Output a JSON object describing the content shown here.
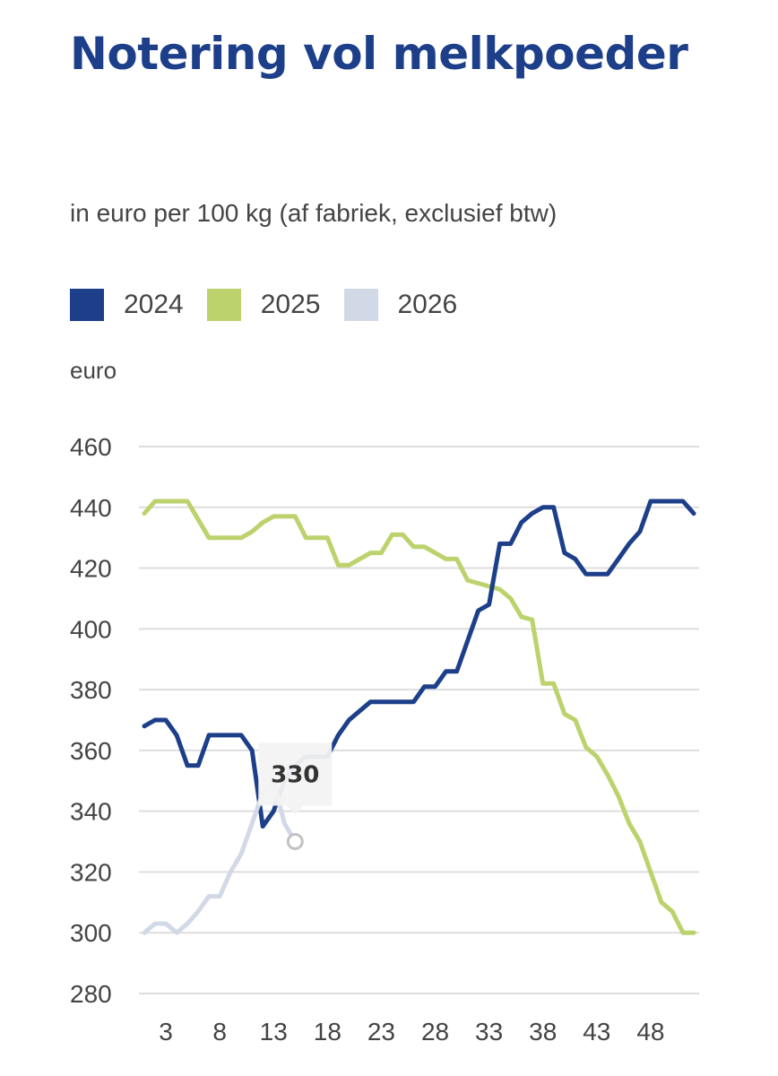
{
  "chart_data": {
    "type": "line",
    "title": "Notering vol melkpoeder",
    "subtitle": "in euro per 100 kg (af fabriek, exclusief btw)",
    "ylabel": "euro",
    "xlabel": "",
    "ylim": [
      280,
      460
    ],
    "yticks": [
      460,
      440,
      420,
      400,
      380,
      360,
      340,
      320,
      300,
      280
    ],
    "xticks": [
      3,
      8,
      13,
      18,
      23,
      28,
      33,
      38,
      43,
      48
    ],
    "xlim": [
      0.5,
      52.5
    ],
    "legend_position": "top",
    "series": [
      {
        "name": "2024",
        "color": "#1d3f8a",
        "x": [
          1,
          2,
          3,
          4,
          5,
          6,
          7,
          8,
          9,
          10,
          11,
          12,
          13,
          14,
          15,
          16,
          17,
          18,
          19,
          20,
          21,
          22,
          23,
          24,
          25,
          26,
          27,
          28,
          29,
          30,
          31,
          32,
          33,
          34,
          35,
          36,
          37,
          38,
          39,
          40,
          41,
          42,
          43,
          44,
          45,
          46,
          47,
          48,
          49,
          50,
          51,
          52
        ],
        "values": [
          368,
          370,
          370,
          365,
          355,
          355,
          365,
          365,
          365,
          365,
          360,
          335,
          340,
          350,
          355,
          358,
          358,
          358,
          365,
          370,
          373,
          376,
          376,
          376,
          376,
          376,
          381,
          381,
          386,
          386,
          396,
          406,
          408,
          428,
          428,
          435,
          438,
          440,
          440,
          425,
          423,
          418,
          418,
          418,
          423,
          428,
          432,
          442,
          442,
          442,
          442,
          438
        ]
      },
      {
        "name": "2025",
        "color": "#bcd26c",
        "x": [
          1,
          2,
          3,
          4,
          5,
          6,
          7,
          8,
          9,
          10,
          11,
          12,
          13,
          14,
          15,
          16,
          17,
          18,
          19,
          20,
          21,
          22,
          23,
          24,
          25,
          26,
          27,
          28,
          29,
          30,
          31,
          32,
          33,
          34,
          35,
          36,
          37,
          38,
          39,
          40,
          41,
          42,
          43,
          44,
          45,
          46,
          47,
          48,
          49,
          50,
          51,
          52
        ],
        "values": [
          438,
          442,
          442,
          442,
          442,
          436,
          430,
          430,
          430,
          430,
          432,
          435,
          437,
          437,
          437,
          430,
          430,
          430,
          421,
          421,
          423,
          425,
          425,
          431,
          431,
          427,
          427,
          425,
          423,
          423,
          416,
          415,
          414,
          413,
          410,
          404,
          403,
          382,
          382,
          372,
          370,
          361,
          358,
          352,
          345,
          336,
          330,
          320,
          310,
          307,
          300,
          300
        ]
      },
      {
        "name": "2026",
        "color": "#d2d9e6",
        "x": [
          1,
          2,
          3,
          4,
          5,
          6,
          7,
          8,
          9,
          10,
          11,
          12,
          13,
          14,
          15
        ],
        "values": [
          300,
          303,
          303,
          300,
          303,
          307,
          312,
          312,
          320,
          326,
          336,
          346,
          350,
          336,
          330
        ]
      }
    ],
    "tooltip": {
      "series": "2026",
      "x": 15,
      "value": "330"
    }
  }
}
